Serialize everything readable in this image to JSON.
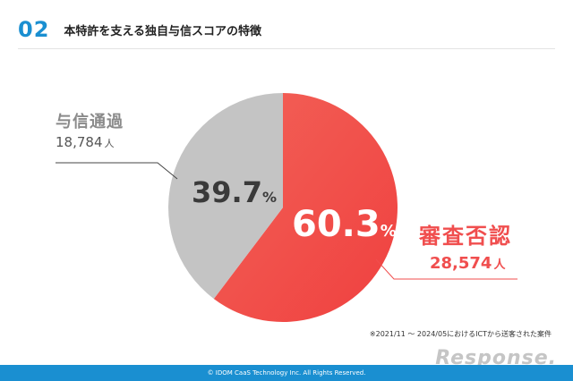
{
  "header": {
    "number": "02",
    "title": "本特許を支える独自与信スコアの特徴"
  },
  "chart_data": {
    "type": "pie",
    "title": "",
    "slices": [
      {
        "label": "審査否認",
        "value": 60.3,
        "count": "28,574",
        "unit": "人",
        "value_text": "60.3",
        "percent_sign": "%",
        "color": "#f5524f"
      },
      {
        "label": "与信通過",
        "value": 39.7,
        "count": "18,784",
        "unit": "人",
        "value_text": "39.7",
        "percent_sign": "%",
        "color": "#c4c4c4"
      }
    ],
    "legend": "callout"
  },
  "note": "※2021/11 〜 2024/05におけるICTから送客された案件",
  "footer": "© IDOM CaaS Technology Inc. All Rights Reserved.",
  "watermark": "Response."
}
